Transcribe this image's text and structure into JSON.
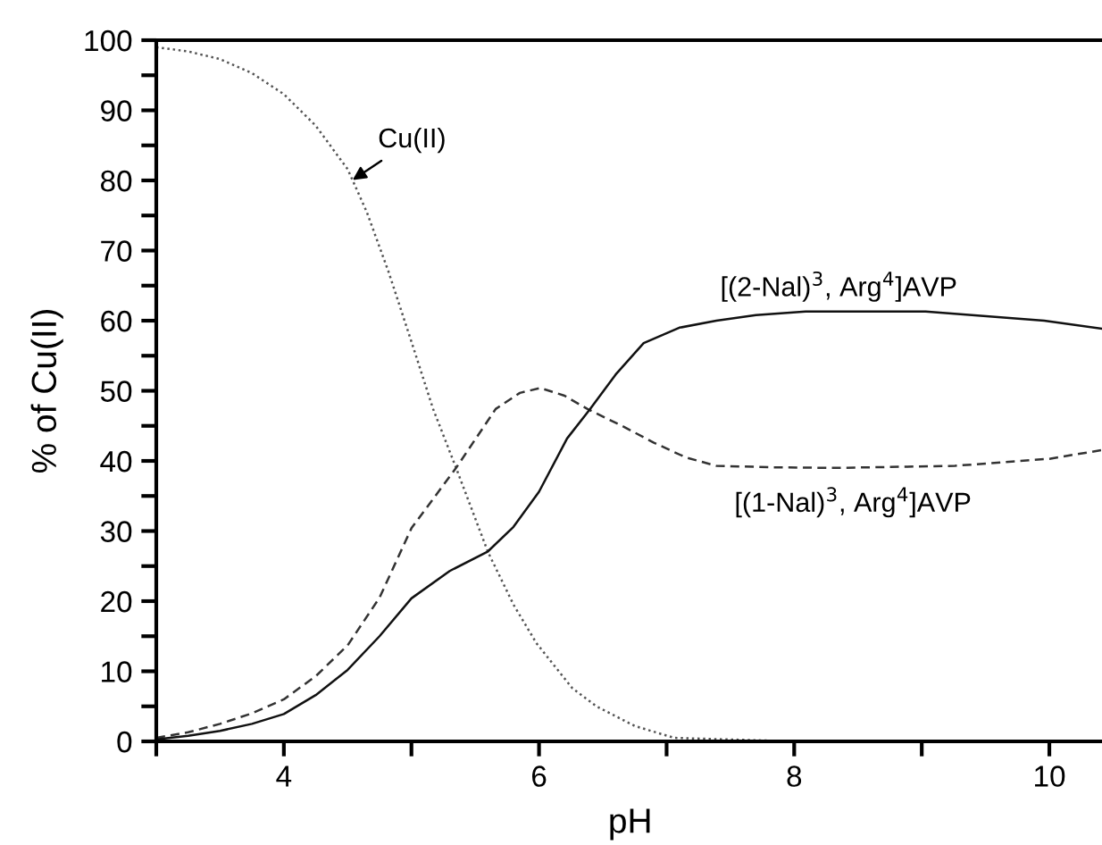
{
  "chart_data": {
    "type": "line",
    "xlabel": "pH",
    "ylabel": "% of Cu(II)",
    "xlim": [
      3,
      10.43
    ],
    "ylim": [
      0,
      100
    ],
    "xticks": [
      {
        "value": 3,
        "label": null
      },
      4,
      {
        "value": 5,
        "label": null
      },
      6,
      {
        "value": 7,
        "label": null
      },
      8,
      {
        "value": 9,
        "label": null
      },
      10
    ],
    "yticks": [
      0,
      {
        "value": 5,
        "label": null
      },
      10,
      {
        "value": 15,
        "label": null
      },
      20,
      {
        "value": 25,
        "label": null
      },
      30,
      {
        "value": 35,
        "label": null
      },
      40,
      {
        "value": 45,
        "label": null
      },
      50,
      {
        "value": 55,
        "label": null
      },
      60,
      {
        "value": 65,
        "label": null
      },
      70,
      {
        "value": 75,
        "label": null
      },
      80,
      {
        "value": 85,
        "label": null
      },
      90,
      {
        "value": 95,
        "label": null
      },
      100
    ],
    "grid": false,
    "legend": false,
    "marker": "none",
    "series": [
      {
        "name": "Cu(II)",
        "color": "#555555",
        "line_style": "dotted",
        "x": [
          3,
          3.25,
          3.5,
          3.75,
          4,
          4.25,
          4.5,
          4.65,
          4.82,
          5,
          5.17,
          5.35,
          5.6,
          5.8,
          5.98,
          6.26,
          6.45,
          6.75,
          7.06,
          8,
          9,
          10.43
        ],
        "values": [
          99,
          98.4,
          97.3,
          95.3,
          92.3,
          87.8,
          81.6,
          75.5,
          67,
          57,
          47.4,
          39,
          27,
          19.5,
          14,
          7.6,
          5,
          2.2,
          0.5,
          0,
          0,
          0
        ]
      },
      {
        "name": "[(1-Nal)$^{3}$, Arg$^{4}$]AVP",
        "color": "#333333",
        "line_style": "dashed",
        "x": [
          3,
          3.25,
          3.5,
          3.75,
          4,
          4.25,
          4.5,
          4.75,
          5,
          5.35,
          5.66,
          5.85,
          6.01,
          6.2,
          6.38,
          6.65,
          6.9,
          7.15,
          7.39,
          7.8,
          8.33,
          9.26,
          10,
          10.43
        ],
        "values": [
          0.5,
          1.3,
          2.5,
          4,
          6,
          9.3,
          13.7,
          20.5,
          30.4,
          39,
          47.4,
          49.7,
          50.4,
          49.3,
          47.4,
          45,
          42.6,
          40.5,
          39.3,
          39.1,
          39,
          39.3,
          40.3,
          41.6
        ]
      },
      {
        "name": "[(2-Nal)$^{3}$, Arg$^{4}$]AVP",
        "color": "#111111",
        "line_style": "solid",
        "x": [
          3,
          3.25,
          3.5,
          3.75,
          4,
          4.25,
          4.5,
          4.75,
          5,
          5.3,
          5.6,
          5.8,
          6,
          6.22,
          6.4,
          6.6,
          6.82,
          7.1,
          7.39,
          7.7,
          8.09,
          9.03,
          9.96,
          10.43
        ],
        "values": [
          0.3,
          0.8,
          1.5,
          2.5,
          3.9,
          6.6,
          10.2,
          15,
          20.4,
          24.3,
          27.1,
          30.6,
          35.6,
          43.2,
          47.4,
          52.3,
          56.8,
          59,
          60,
          60.8,
          61.3,
          61.3,
          60,
          58.8
        ]
      }
    ]
  }
}
